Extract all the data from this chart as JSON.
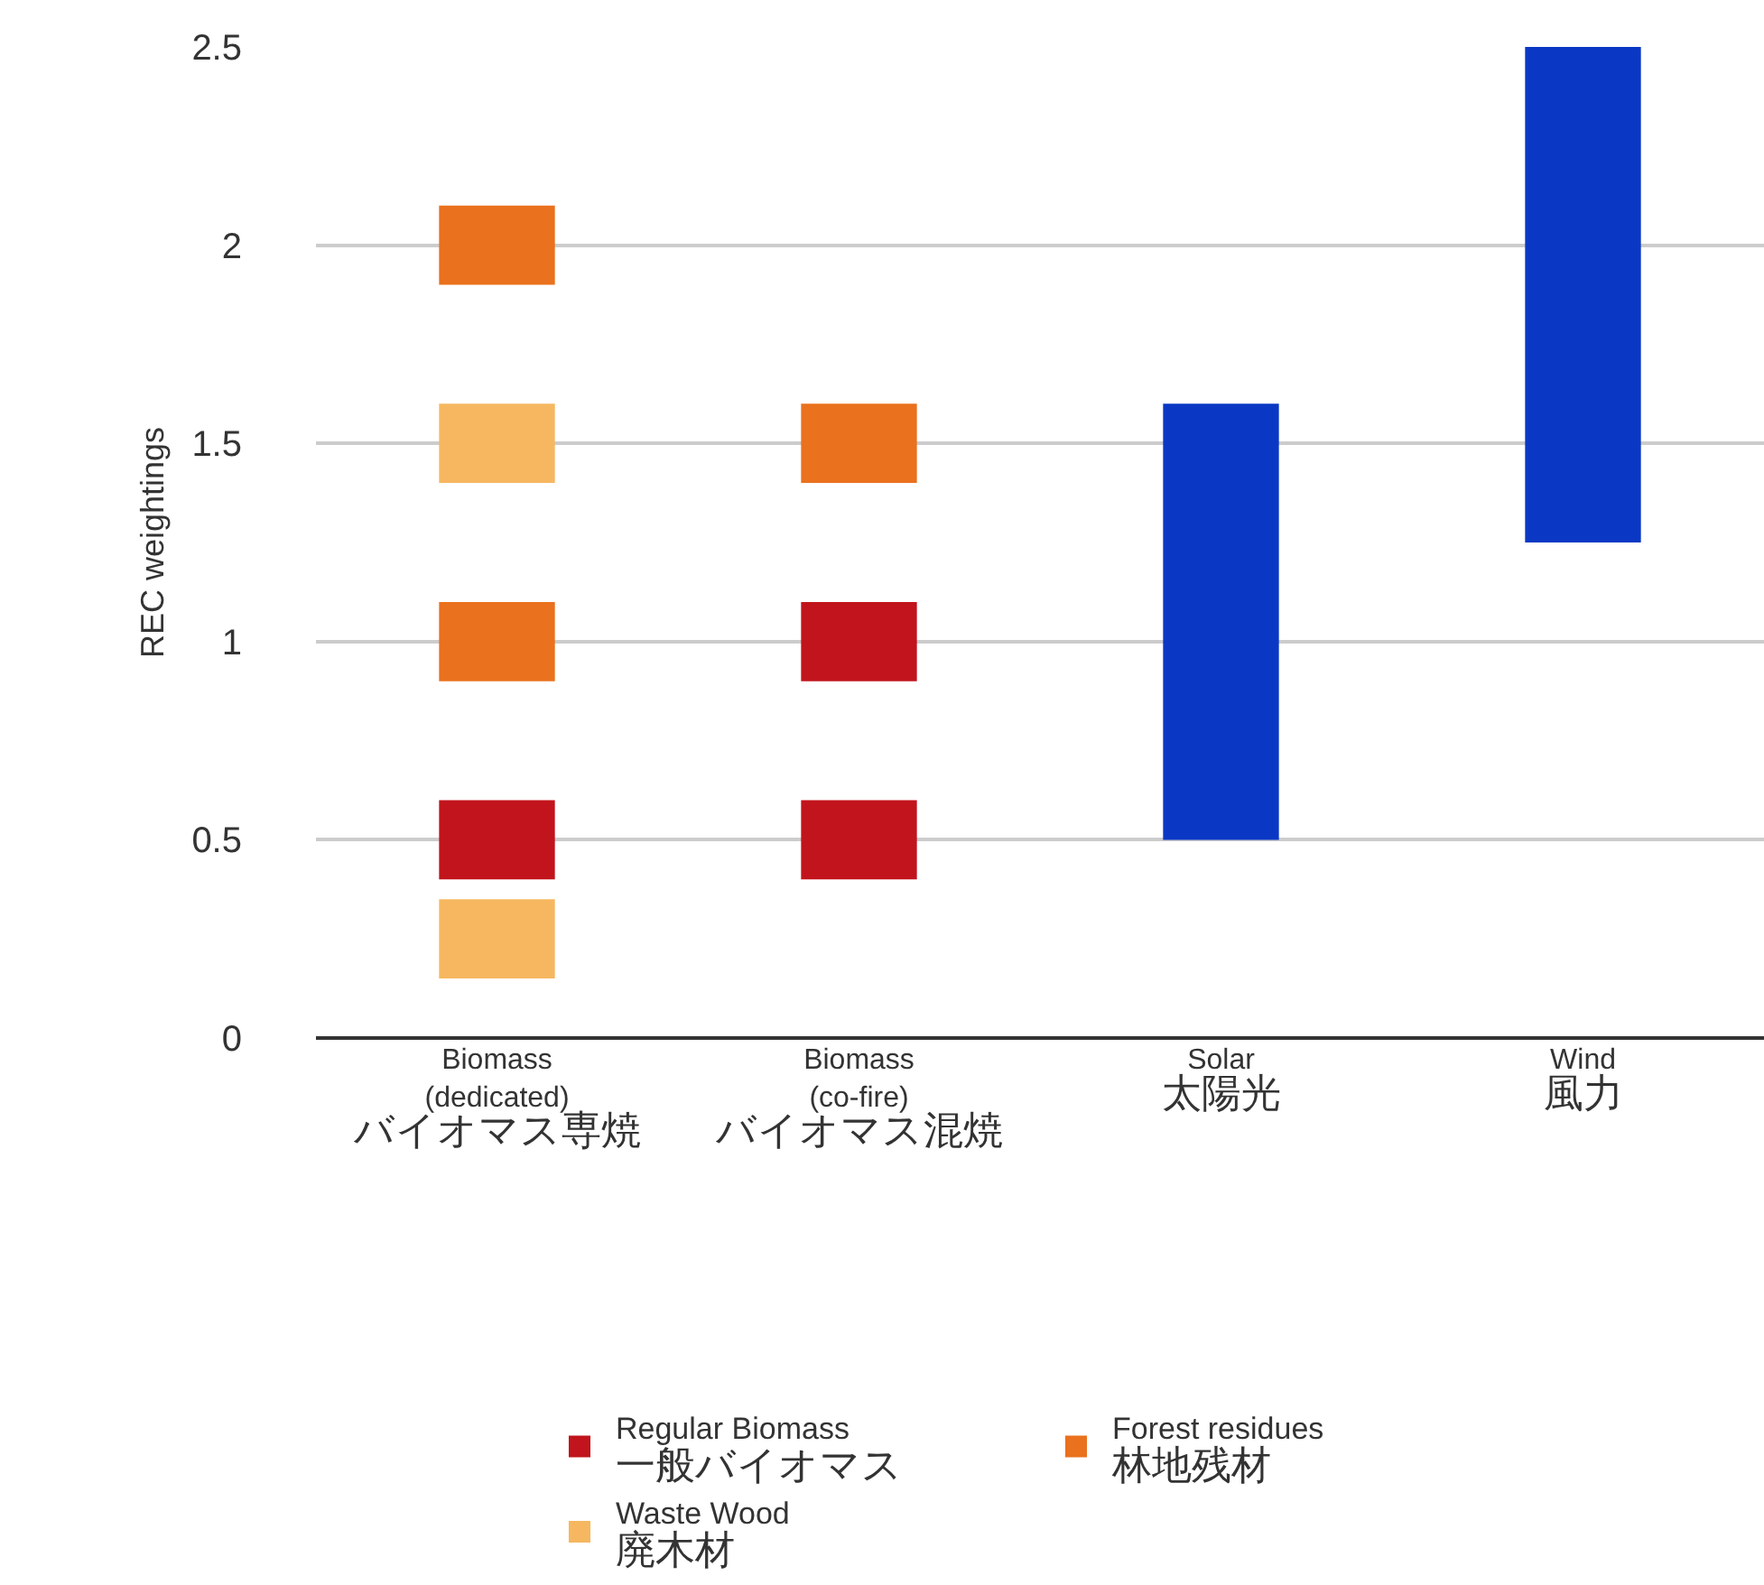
{
  "chart_data": {
    "type": "bar",
    "ylabel": "REC weightings",
    "categories": [
      "Biomass\n(dedicated)\nバイオマス専焼",
      "Biomass\n(co-fire)\nバイオマス混焼",
      "Solar\n太陽光",
      "Wind\n風力"
    ],
    "series": [
      {
        "name": "Regular Biomass\n一般バイオマス",
        "color": "#c1141c",
        "values": [
          0.2,
          0.2,
          null,
          null
        ],
        "base": [
          0.4,
          0.4,
          null,
          null
        ]
      },
      {
        "color": "#c1141c",
        "values": [
          null,
          0.2,
          null,
          null
        ],
        "base": [
          null,
          0.9,
          null,
          null
        ]
      },
      {
        "name": "Forest residues\n林地残材",
        "color": "#ea711d",
        "values": [
          0.2,
          0.2,
          null,
          null
        ],
        "base": [
          0.9,
          1.4,
          null,
          null
        ]
      },
      {
        "color": "#ea711d",
        "values": [
          0.2,
          null,
          null,
          null
        ],
        "base": [
          1.9,
          null,
          null,
          null
        ]
      },
      {
        "name": "Waste Wood\n廃木材",
        "color": "#f6b760",
        "values": [
          0.2,
          null,
          null,
          null
        ],
        "base": [
          0.15,
          null,
          null,
          null
        ]
      },
      {
        "color": "#f6b760",
        "values": [
          0.2,
          null,
          null,
          null
        ],
        "base": [
          1.4,
          null,
          null,
          null
        ]
      },
      {
        "color": "#0a38c4",
        "values": [
          null,
          null,
          1.1,
          1.25
        ],
        "base": [
          null,
          null,
          0.5,
          1.25
        ]
      }
    ],
    "ylim": [
      0,
      2.5
    ],
    "yticks": [
      0,
      0.5,
      1,
      1.5,
      2,
      2.5
    ],
    "grid": "y",
    "legend": "bottom"
  }
}
